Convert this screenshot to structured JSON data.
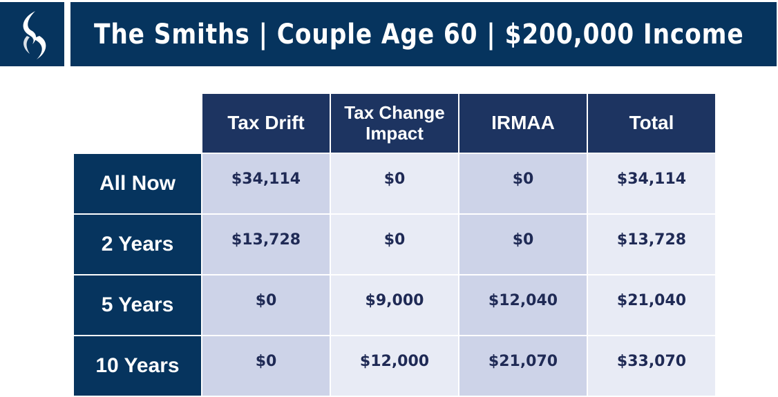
{
  "header": {
    "title": "The Smiths | Couple Age 60 | $200,000 Income"
  },
  "colors": {
    "header_bg": "#06345e",
    "column_header_bg": "#1d3461",
    "cell_dark": "#cdd3e8",
    "cell_light": "#e8ebf5",
    "cell_text": "#1f2a55"
  },
  "table": {
    "columns": [
      {
        "label": "Tax Drift"
      },
      {
        "label": "Tax Change Impact"
      },
      {
        "label": "IRMAA"
      },
      {
        "label": "Total"
      }
    ],
    "rows": [
      {
        "label": "All Now",
        "cells": [
          "$34,114",
          "$0",
          "$0",
          "$34,114"
        ]
      },
      {
        "label": "2 Years",
        "cells": [
          "$13,728",
          "$0",
          "$0",
          "$13,728"
        ]
      },
      {
        "label": "5 Years",
        "cells": [
          "$0",
          "$9,000",
          "$12,040",
          "$21,040"
        ]
      },
      {
        "label": "10 Years",
        "cells": [
          "$0",
          "$12,000",
          "$21,070",
          "$33,070"
        ]
      }
    ]
  }
}
